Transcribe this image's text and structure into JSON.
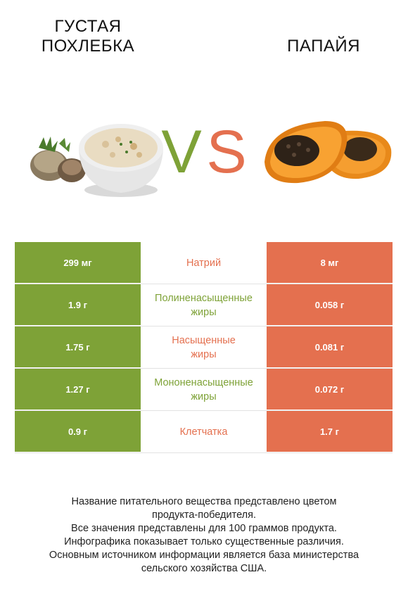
{
  "header": {
    "left_title_line1": "Густая",
    "left_title_line2": "похлебка",
    "right_title": "Папайя",
    "vs_v": "V",
    "vs_s": "S"
  },
  "colors": {
    "left_accent": "#7ea237",
    "right_accent": "#e4704f"
  },
  "rows": [
    {
      "left": "299 мг",
      "label_line1": "Натрий",
      "label_line2": "",
      "right": "8 мг",
      "winner": "right"
    },
    {
      "left": "1.9 г",
      "label_line1": "Полиненасыщенные",
      "label_line2": "жиры",
      "right": "0.058 г",
      "winner": "left"
    },
    {
      "left": "1.75 г",
      "label_line1": "Насыщенные",
      "label_line2": "жиры",
      "right": "0.081 г",
      "winner": "right"
    },
    {
      "left": "1.27 г",
      "label_line1": "Мононенасыщенные",
      "label_line2": "жиры",
      "right": "0.072 г",
      "winner": "left"
    },
    {
      "left": "0.9 г",
      "label_line1": "Клетчатка",
      "label_line2": "",
      "right": "1.7 г",
      "winner": "right"
    }
  ],
  "footer": {
    "line1": "Название питательного вещества представлено цветом",
    "line2": "продукта-победителя.",
    "line3": "Все значения представлены для 100 граммов продукта.",
    "line4": "Инфографика показывает только существенные различия.",
    "line5": "Основным источником информации является база министерства",
    "line6": "сельского хозяйства США."
  }
}
